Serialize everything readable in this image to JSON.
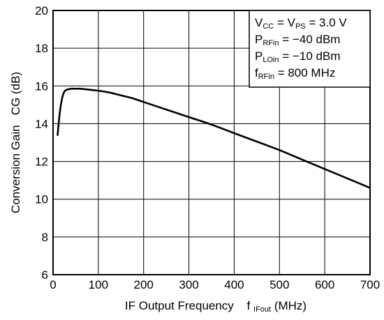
{
  "chart_data": {
    "type": "line",
    "title": "",
    "xlabel": {
      "main": "IF Output Frequency",
      "symbol": "f",
      "symbol_sub": "IFout",
      "unit": "(MHz)"
    },
    "ylabel": "Conversion Gain   CG (dB)",
    "xlim": [
      0,
      700
    ],
    "ylim": [
      6,
      20
    ],
    "x_ticks": [
      0,
      100,
      200,
      300,
      400,
      500,
      600,
      700
    ],
    "y_ticks": [
      6,
      8,
      10,
      12,
      14,
      16,
      18,
      20
    ],
    "grid": true,
    "legend_placement": "top-right",
    "conditions": [
      {
        "main": "V",
        "sub": "CC",
        "text": " = V",
        "sub2": "PS",
        "text2": " = 3.0 V"
      },
      {
        "main": "P",
        "sub": "RFin",
        "text": " = −40 dBm"
      },
      {
        "main": "P",
        "sub": "LOin",
        "text": " = −10 dBm"
      },
      {
        "main": "f",
        "sub": "RFin",
        "text": " = 800 MHz"
      }
    ],
    "series": [
      {
        "color": "#000000",
        "x": [
          10,
          15,
          20,
          25,
          30,
          40,
          50,
          60,
          80,
          100,
          125,
          150,
          175,
          200,
          250,
          300,
          350,
          400,
          450,
          500,
          550,
          600,
          650,
          700
        ],
        "y": [
          13.4,
          14.6,
          15.35,
          15.7,
          15.8,
          15.85,
          15.85,
          15.85,
          15.8,
          15.75,
          15.65,
          15.5,
          15.35,
          15.15,
          14.75,
          14.35,
          13.95,
          13.5,
          13.05,
          12.6,
          12.1,
          11.6,
          11.1,
          10.6
        ]
      }
    ]
  }
}
